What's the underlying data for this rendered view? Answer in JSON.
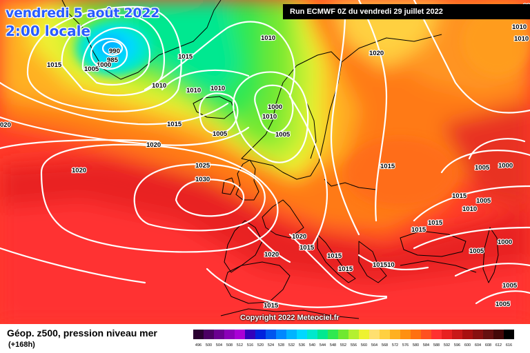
{
  "header": {
    "date_line": "vendredi 5 août 2022",
    "time_line": "2:00 locale",
    "run_info": "Run ECMWF 0Z du vendredi 29 juillet 2022"
  },
  "footer": {
    "title": "Géop. z500, pression niveau mer",
    "forecast_hour": "(+168h)",
    "copyright": "Copyright 2022 Meteociel.fr"
  },
  "legend": {
    "values": [
      "496",
      "500",
      "504",
      "508",
      "512",
      "516",
      "520",
      "524",
      "528",
      "532",
      "536",
      "540",
      "544",
      "548",
      "552",
      "556",
      "560",
      "564",
      "568",
      "572",
      "576",
      "580",
      "584",
      "588",
      "592",
      "596",
      "600",
      "604",
      "608",
      "612",
      "616"
    ],
    "colors": [
      "#2a0030",
      "#4b0063",
      "#6a0090",
      "#8b00b8",
      "#aa00d6",
      "#3300bb",
      "#0022dd",
      "#0055ee",
      "#0088ff",
      "#00b4ff",
      "#00d8ff",
      "#00e8cc",
      "#00e890",
      "#30e850",
      "#70e830",
      "#b4f030",
      "#eef230",
      "#ffe070",
      "#ffd040",
      "#ffb020",
      "#ff9010",
      "#ff7010",
      "#ff5020",
      "#ff3030",
      "#e82020",
      "#c81818",
      "#a81010",
      "#881010",
      "#661010",
      "#440808",
      "#000000"
    ]
  },
  "isobar_labels": [
    {
      "text": "990"
    },
    {
      "text": "985"
    },
    {
      "text": "1000"
    },
    {
      "text": "1005"
    },
    {
      "text": "1015"
    },
    {
      "text": "1010"
    },
    {
      "text": "1010"
    },
    {
      "text": "1010"
    },
    {
      "text": "1015"
    },
    {
      "text": "1010"
    },
    {
      "text": "1000"
    },
    {
      "text": "1005"
    },
    {
      "text": "1005"
    },
    {
      "text": "1015"
    },
    {
      "text": "1020"
    },
    {
      "text": "020"
    },
    {
      "text": "1020"
    },
    {
      "text": "1025"
    },
    {
      "text": "1030"
    },
    {
      "text": "1020"
    },
    {
      "text": "1010"
    },
    {
      "text": "1010"
    },
    {
      "text": "1015"
    },
    {
      "text": "1005"
    },
    {
      "text": "1000"
    },
    {
      "text": "1015"
    },
    {
      "text": "1010"
    },
    {
      "text": "1005"
    },
    {
      "text": "1015"
    },
    {
      "text": "1015"
    },
    {
      "text": "1000"
    },
    {
      "text": "1005"
    },
    {
      "text": "1020"
    },
    {
      "text": "1015"
    },
    {
      "text": "1020"
    },
    {
      "text": "1015"
    },
    {
      "text": "1015"
    },
    {
      "text": "101510"
    },
    {
      "text": "1015"
    },
    {
      "text": "1005"
    },
    {
      "text": "1005"
    },
    {
      "text": "1010"
    },
    {
      "text": "1010"
    },
    {
      "text": "001"
    }
  ],
  "colors": {
    "warm_ridge": "#ff4a2a",
    "cold_trough": "#70e830",
    "low_center": "#00c8ff",
    "isobar_line": "#ffffff",
    "coastline": "#000000"
  }
}
